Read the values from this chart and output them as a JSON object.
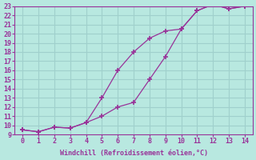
{
  "line1_x": [
    0,
    1,
    2,
    3,
    4,
    5,
    6,
    7,
    8,
    9,
    10,
    11,
    12,
    13,
    14
  ],
  "line1_y": [
    9.5,
    9.3,
    9.8,
    9.7,
    10.3,
    13.0,
    16.0,
    18.0,
    19.5,
    20.3,
    20.5,
    22.5,
    23.2,
    22.7,
    23.0
  ],
  "line2_x": [
    0,
    1,
    2,
    3,
    4,
    5,
    6,
    7,
    8,
    9,
    10,
    11,
    12,
    13,
    14
  ],
  "line2_y": [
    9.5,
    9.3,
    9.8,
    9.7,
    10.3,
    11.0,
    12.0,
    12.5,
    15.0,
    17.5,
    20.5,
    22.5,
    23.2,
    22.7,
    23.0
  ],
  "line_color": "#993399",
  "marker": "+",
  "xlabel": "Windchill (Refroidissement éolien,°C)",
  "xlim": [
    -0.5,
    14.5
  ],
  "ylim": [
    9,
    23
  ],
  "yticks": [
    9,
    10,
    11,
    12,
    13,
    14,
    15,
    16,
    17,
    18,
    19,
    20,
    21,
    22,
    23
  ],
  "xticks": [
    0,
    1,
    2,
    3,
    4,
    5,
    6,
    7,
    8,
    9,
    10,
    11,
    12,
    13,
    14
  ],
  "bg_color": "#b8e8e0",
  "grid_color": "#a0d0cc",
  "axis_color": "#993399",
  "tick_color": "#993399",
  "label_color": "#993399"
}
